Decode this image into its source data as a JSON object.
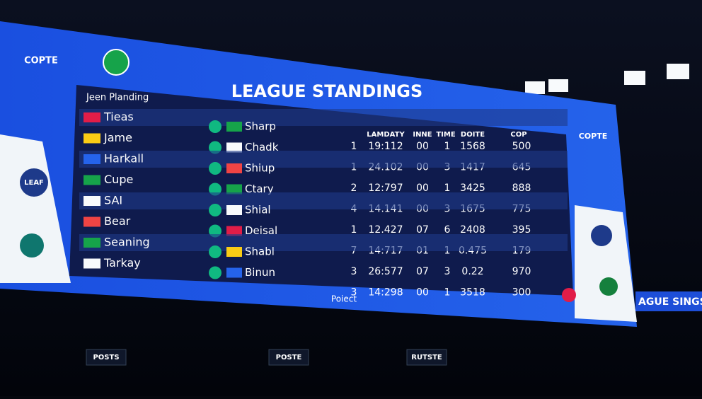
{
  "board": {
    "logo_left": "COPTE",
    "logo_right": "COPTE",
    "title": "LEAGUE STANDINGS",
    "subtitle": "Jeen Planding",
    "columns": [
      "LAMDATY",
      "INNE",
      "TIME",
      "DOITE",
      "COP"
    ],
    "footer": "Poiect",
    "badge_left": "LEAF"
  },
  "table": {
    "rows": [
      {
        "team": "Tieas",
        "opponent": "Sharp",
        "rank": "1",
        "time": "19:112",
        "inne": "00",
        "t": "1",
        "doite": "1568",
        "cop": "500"
      },
      {
        "team": "Jame",
        "opponent": "Chadk",
        "rank": "1",
        "time": "24.102",
        "inne": "00",
        "t": "3",
        "doite": "1417",
        "cop": "645"
      },
      {
        "team": "Harkall",
        "opponent": "Shiup",
        "rank": "2",
        "time": "12:797",
        "inne": "00",
        "t": "1",
        "doite": "3425",
        "cop": "888"
      },
      {
        "team": "Cupe",
        "opponent": "Ctary",
        "rank": "4",
        "time": "14.141",
        "inne": "00",
        "t": "3",
        "doite": "1675",
        "cop": "775"
      },
      {
        "team": "SAI",
        "opponent": "Shial",
        "rank": "1",
        "time": "12.427",
        "inne": "07",
        "t": "6",
        "doite": "2408",
        "cop": "395"
      },
      {
        "team": "Bear",
        "opponent": "Deisal",
        "rank": "7",
        "time": "14:717",
        "inne": "01",
        "t": "1",
        "doite": "0.475",
        "cop": "179"
      },
      {
        "team": "Seaning",
        "opponent": "Shabl",
        "rank": "3",
        "time": "26:577",
        "inne": "07",
        "t": "3",
        "doite": "0.22",
        "cop": "970"
      },
      {
        "team": "Tarkay",
        "opponent": "Binun",
        "rank": "3",
        "time": "14:298",
        "inne": "00",
        "t": "1",
        "doite": "3518",
        "cop": "300"
      }
    ]
  },
  "side_banner": "AGUE SINGS S",
  "signs": [
    "POSTS",
    "POSTE",
    "RUTSTE"
  ]
}
